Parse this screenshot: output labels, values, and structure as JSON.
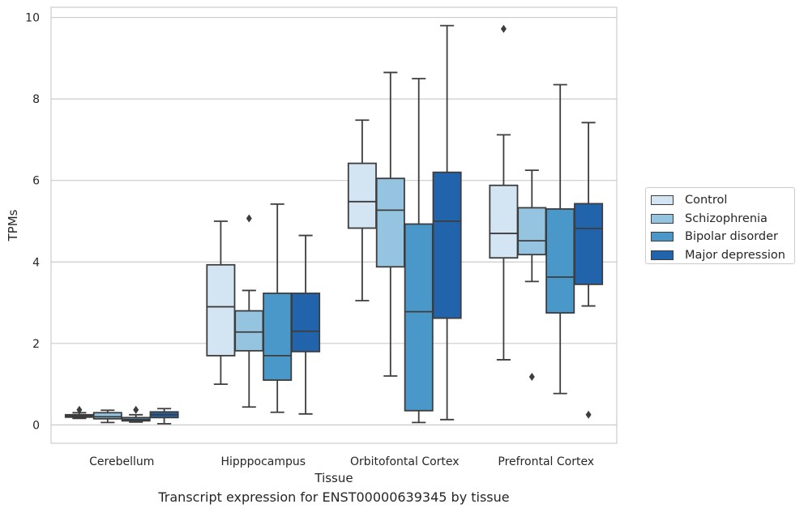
{
  "caption": "Transcript expression for ENST00000639345 by tissue",
  "chart_data": {
    "type": "box",
    "xlabel": "Tissue",
    "ylabel": "TPMs",
    "ylim": [
      -0.45,
      10.25
    ],
    "yticks": [
      0,
      2,
      4,
      6,
      8,
      10
    ],
    "grid": "horizontal",
    "legend_position": "right",
    "categories": [
      "Cerebellum",
      "Hipppocampus",
      "Orbitofontal Cortex",
      "Prefrontal Cortex"
    ],
    "series": [
      {
        "name": "Control",
        "color": "#d3e4f3",
        "boxes": [
          {
            "low": 0.16,
            "q1": 0.19,
            "median": 0.22,
            "q3": 0.25,
            "high": 0.3,
            "outliers": [
              0.37
            ]
          },
          {
            "low": 1.0,
            "q1": 1.7,
            "median": 2.9,
            "q3": 3.93,
            "high": 5.0,
            "outliers": []
          },
          {
            "low": 3.05,
            "q1": 4.83,
            "median": 5.48,
            "q3": 6.42,
            "high": 7.48,
            "outliers": []
          },
          {
            "low": 1.6,
            "q1": 4.1,
            "median": 4.7,
            "q3": 5.88,
            "high": 7.12,
            "outliers": [
              9.72
            ]
          }
        ]
      },
      {
        "name": "Schizophrenia",
        "color": "#94c4df",
        "boxes": [
          {
            "low": 0.06,
            "q1": 0.15,
            "median": 0.2,
            "q3": 0.3,
            "high": 0.36,
            "outliers": []
          },
          {
            "low": 0.44,
            "q1": 1.82,
            "median": 2.28,
            "q3": 2.8,
            "high": 3.3,
            "outliers": [
              5.07
            ]
          },
          {
            "low": 1.2,
            "q1": 3.88,
            "median": 5.27,
            "q3": 6.05,
            "high": 8.65,
            "outliers": []
          },
          {
            "low": 3.52,
            "q1": 4.18,
            "median": 4.52,
            "q3": 5.33,
            "high": 6.25,
            "outliers": [
              1.18
            ]
          }
        ]
      },
      {
        "name": "Bipolar disorder",
        "color": "#4a98c9",
        "boxes": [
          {
            "low": 0.07,
            "q1": 0.1,
            "median": 0.13,
            "q3": 0.18,
            "high": 0.25,
            "outliers": [
              0.37
            ]
          },
          {
            "low": 0.31,
            "q1": 1.1,
            "median": 1.7,
            "q3": 3.23,
            "high": 5.42,
            "outliers": []
          },
          {
            "low": 0.06,
            "q1": 0.35,
            "median": 2.78,
            "q3": 4.93,
            "high": 8.5,
            "outliers": []
          },
          {
            "low": 0.77,
            "q1": 2.75,
            "median": 3.63,
            "q3": 5.3,
            "high": 8.35,
            "outliers": []
          }
        ]
      },
      {
        "name": "Major depression",
        "color": "#2164ab",
        "boxes": [
          {
            "low": 0.03,
            "q1": 0.18,
            "median": 0.25,
            "q3": 0.32,
            "high": 0.4,
            "outliers": []
          },
          {
            "low": 0.27,
            "q1": 1.8,
            "median": 2.3,
            "q3": 3.23,
            "high": 4.65,
            "outliers": []
          },
          {
            "low": 0.13,
            "q1": 2.62,
            "median": 5.0,
            "q3": 6.2,
            "high": 9.8,
            "outliers": []
          },
          {
            "low": 2.92,
            "q1": 3.45,
            "median": 4.82,
            "q3": 5.43,
            "high": 7.42,
            "outliers": [
              0.25
            ]
          }
        ]
      }
    ]
  }
}
